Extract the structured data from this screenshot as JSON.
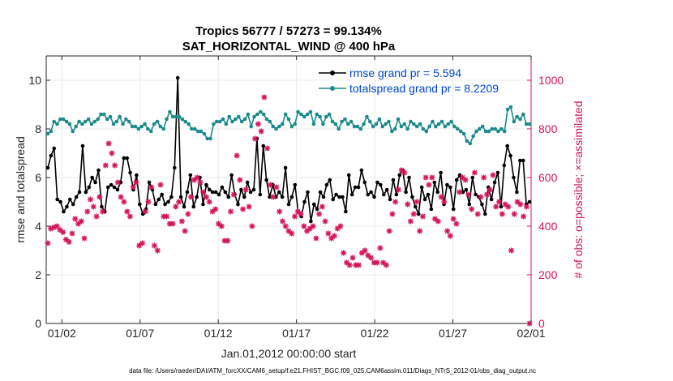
{
  "chart_data": {
    "type": "line",
    "title": "Tropics 56777 / 57273 = 99.134%",
    "subtitle": "SAT_HORIZONTAL_WIND @ 400 hPa",
    "xlabel": "Jan.01,2012 00:00:00 start",
    "ylabel": "rmse and totalspread",
    "ylabel_right": "# of obs: o=possible; ×=assimilated",
    "xlim": [
      0,
      31
    ],
    "ylim": [
      0,
      11
    ],
    "ylim_right": [
      0,
      1100
    ],
    "grid": true,
    "x_ticks": [
      {
        "pos": 1,
        "label": "01/02"
      },
      {
        "pos": 6,
        "label": "01/07"
      },
      {
        "pos": 11,
        "label": "01/12"
      },
      {
        "pos": 16,
        "label": "01/17"
      },
      {
        "pos": 21,
        "label": "01/22"
      },
      {
        "pos": 26,
        "label": "01/27"
      },
      {
        "pos": 31,
        "label": "02/01"
      }
    ],
    "y_ticks": [
      0,
      2,
      4,
      6,
      8,
      10
    ],
    "y_ticks_right": [
      0,
      200,
      400,
      600,
      800,
      1000
    ],
    "legend_position": "top-right",
    "footer": "data file: /Users/raeder/DAI/ATM_forcXX/CAM6_setup/f.e21.FHIST_BGC.f09_025.CAM6assim.011/Diags_NTrS_2012-01/obs_diag_output.nc",
    "series": [
      {
        "name": "rmse grand pr = 5.594",
        "color": "#000000",
        "axis": "left",
        "values": [
          6.4,
          6.9,
          7.2,
          5.1,
          5.0,
          4.6,
          4.8,
          5.1,
          4.9,
          5.2,
          5.4,
          7.3,
          5.4,
          5.6,
          6.0,
          5.8,
          6.3,
          4.8,
          4.6,
          5.6,
          5.7,
          5.6,
          5.5,
          5.8,
          6.8,
          6.8,
          6.2,
          5.5,
          6.1,
          4.9,
          4.5,
          4.7,
          5.8,
          5.5,
          4.9,
          5.1,
          5.3,
          4.9,
          5.0,
          5.2,
          6.4,
          10.1,
          5.2,
          4.8,
          5.4,
          6.1,
          4.8,
          5.2,
          6.0,
          4.9,
          5.7,
          5.5,
          5.4,
          5.4,
          5.3,
          5.6,
          5.4,
          5.2,
          6.1,
          5.3,
          4.9,
          5.5,
          5.2,
          5.8,
          5.4,
          5.5,
          7.6,
          5.3,
          7.3,
          5.9,
          5.2,
          5.7,
          5.2,
          5.4,
          5.2,
          6.4,
          4.9,
          5.2,
          5.7,
          4.6,
          4.4,
          5.0,
          5.4,
          4.2,
          4.9,
          4.7,
          5.4,
          5.2,
          5.7,
          5.9,
          5.1,
          5.3,
          5.2,
          5.2,
          4.6,
          6.1,
          5.3,
          5.6,
          5.6,
          6.3,
          5.8,
          5.3,
          5.4,
          5.2,
          5.8,
          5.7,
          5.3,
          5.5,
          5.1,
          5.9,
          5.3,
          6.1,
          6.3,
          5.4,
          6.0,
          5.2,
          4.8,
          4.5,
          5.6,
          5.1,
          5.3,
          4.7,
          5.8,
          5.4,
          6.2,
          4.9,
          5.7,
          5.6,
          4.7,
          5.9,
          6.1,
          5.4,
          5.5,
          4.9,
          6.0,
          5.3,
          5.2,
          4.9,
          4.5,
          5.6,
          5.1,
          5.8,
          6.2,
          4.8,
          6.5,
          7.3,
          6.9,
          6.0,
          5.4,
          6.7,
          6.7,
          4.9,
          5.0
        ],
        "markers": "filled-circle"
      },
      {
        "name": "totalspread grand pr = 8.2209",
        "color": "#1a8a8a",
        "axis": "left",
        "values": [
          7.8,
          7.9,
          8.3,
          8.2,
          8.4,
          8.4,
          8.3,
          8.2,
          7.9,
          8.1,
          8.3,
          8.2,
          8.3,
          8.4,
          8.2,
          8.3,
          8.4,
          8.6,
          8.6,
          8.4,
          8.5,
          8.2,
          8.3,
          8.5,
          8.2,
          8.4,
          8.3,
          8.1,
          8.1,
          8.0,
          8.1,
          8.2,
          8.0,
          7.9,
          8.2,
          8.3,
          8.1,
          8.0,
          8.4,
          8.7,
          8.5,
          8.5,
          8.5,
          8.4,
          8.3,
          8.2,
          8.0,
          8.0,
          7.9,
          7.9,
          7.8,
          7.6,
          7.6,
          8.2,
          8.3,
          8.3,
          8.4,
          8.2,
          8.5,
          8.3,
          8.4,
          8.5,
          8.3,
          8.4,
          8.6,
          8.1,
          8.5,
          8.6,
          8.7,
          8.6,
          8.4,
          8.3,
          8.1,
          8.0,
          8.1,
          8.2,
          8.6,
          8.4,
          8.1,
          8.2,
          8.7,
          8.6,
          8.5,
          8.6,
          8.7,
          8.2,
          8.6,
          8.5,
          8.2,
          8.5,
          8.6,
          8.3,
          8.2,
          8.0,
          8.3,
          8.4,
          8.2,
          8.3,
          8.1,
          8.1,
          8.0,
          8.2,
          8.5,
          8.3,
          8.1,
          8.2,
          8.4,
          8.1,
          8.2,
          8.3,
          7.9,
          8.0,
          8.4,
          8.1,
          8.2,
          8.0,
          8.3,
          8.2,
          8.1,
          8.2,
          8.0,
          7.9,
          8.1,
          8.3,
          8.1,
          8.2,
          8.3,
          8.1,
          8.2,
          8.3,
          8.1,
          8.0,
          7.9,
          7.8,
          7.5,
          7.4,
          7.7,
          7.9,
          8.0,
          8.1,
          7.9,
          7.9,
          8.0,
          8.0,
          7.9,
          8.0,
          7.9,
          8.8,
          8.9,
          8.3,
          8.5,
          8.4,
          8.6,
          8.2,
          8.2
        ],
        "markers": "filled-circle"
      },
      {
        "name": "possible obs",
        "color": "#d4145a",
        "axis": "right",
        "values": [
          330,
          390,
          395,
          400,
          385,
          375,
          345,
          335,
          370,
          430,
          410,
          420,
          350,
          460,
          510,
          480,
          440,
          520,
          460,
          650,
          740,
          700,
          650,
          580,
          520,
          500,
          460,
          440,
          560,
          580,
          320,
          330,
          460,
          500,
          560,
          320,
          300,
          570,
          440,
          440,
          410,
          410,
          480,
          500,
          420,
          380,
          450,
          520,
          590,
          600,
          580,
          540,
          520,
          500,
          460,
          470,
          410,
          400,
          340,
          340,
          460,
          530,
          690,
          590,
          470,
          550,
          480,
          400,
          760,
          820,
          790,
          930,
          720,
          570,
          520,
          560,
          460,
          420,
          400,
          380,
          370,
          440,
          460,
          450,
          400,
          380,
          390,
          400,
          350,
          450,
          480,
          420,
          370,
          350,
          360,
          390,
          400,
          290,
          250,
          240,
          270,
          240,
          240,
          290,
          300,
          280,
          270,
          250,
          250,
          310,
          250,
          240,
          380,
          450,
          500,
          550,
          630,
          620,
          490,
          420,
          450,
          500,
          380,
          440,
          600,
          570,
          600,
          430,
          420,
          520,
          500,
          380,
          360,
          430,
          410,
          540,
          600,
          590,
          530,
          470,
          620,
          450,
          520,
          600,
          530,
          550,
          610,
          480,
          500,
          450,
          490,
          480,
          300,
          450,
          500,
          490,
          440,
          480,
          0
        ],
        "markers": "asterisk"
      }
    ],
    "legend": [
      {
        "label": "rmse grand pr = 5.594",
        "color": "#000000"
      },
      {
        "label": "totalspread grand pr = 8.2209",
        "color": "#1a8a8a"
      }
    ]
  }
}
